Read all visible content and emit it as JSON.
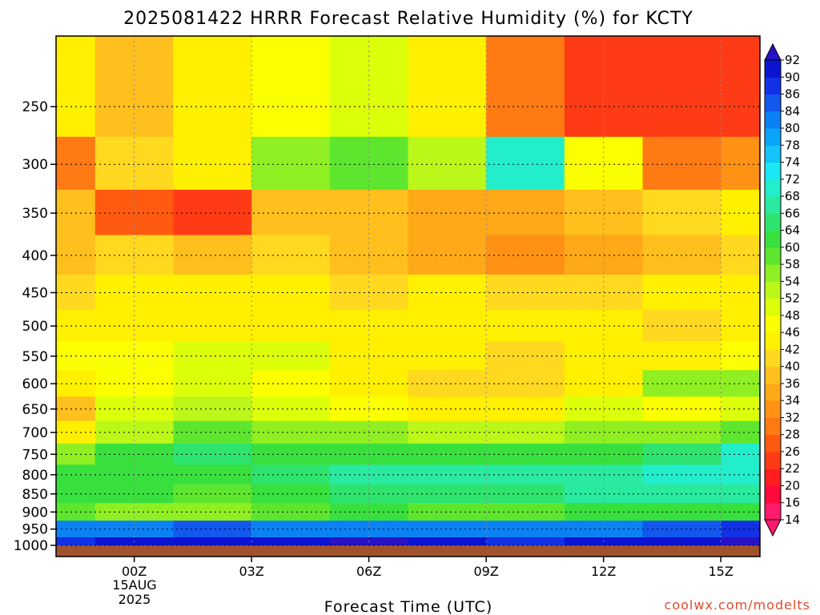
{
  "chart_data": {
    "type": "heatmap",
    "title": "2025081422 HRRR Forecast Relative Humidity (%) for KCTY",
    "xlabel": "Forecast Time (UTC)",
    "ylabel": "",
    "credit": "coolwx.com/modelts",
    "x_date_label": [
      "15AUG",
      "2025"
    ],
    "x_ticks": [
      {
        "label": "00Z",
        "hour": 0
      },
      {
        "label": "03Z",
        "hour": 3
      },
      {
        "label": "06Z",
        "hour": 6
      },
      {
        "label": "09Z",
        "hour": 9
      },
      {
        "label": "12Z",
        "hour": 12
      },
      {
        "label": "15Z",
        "hour": 15
      }
    ],
    "x_range_hours": [
      -2,
      16
    ],
    "y_scale": "log",
    "y_range_hPa": [
      1000,
      200
    ],
    "y_ticks": [
      250,
      300,
      350,
      400,
      450,
      500,
      550,
      600,
      650,
      700,
      750,
      800,
      850,
      900,
      950,
      1000
    ],
    "grid": true,
    "colorbar": {
      "levels": [
        14,
        16,
        20,
        22,
        26,
        28,
        32,
        34,
        36,
        40,
        42,
        46,
        48,
        52,
        54,
        58,
        60,
        64,
        66,
        68,
        72,
        74,
        78,
        80,
        84,
        86,
        90,
        92
      ],
      "colors": [
        "#ff1a6e",
        "#ff0a3c",
        "#ff1e1e",
        "#ff3b16",
        "#ff5a10",
        "#ff7a12",
        "#ff9214",
        "#ffa818",
        "#ffbf1c",
        "#ffd820",
        "#fff000",
        "#fbff00",
        "#dcff0a",
        "#bcf71a",
        "#8fef22",
        "#5ee62e",
        "#38e03e",
        "#2fe46e",
        "#29ea9f",
        "#22eecc",
        "#1ae8f4",
        "#12c4f8",
        "#0aa4f8",
        "#0a82f4",
        "#1258ee",
        "#1232e6",
        "#0c14d2",
        "#2812c4"
      ],
      "extend": "both"
    },
    "series": [
      {
        "name": "",
        "hour": -2,
        "rh": [
          42,
          30,
          36,
          38,
          40,
          44,
          46,
          42,
          36,
          42,
          56,
          60,
          62,
          58,
          80,
          88
        ]
      },
      {
        "name": "",
        "hour": 0,
        "rh": [
          38,
          40,
          26,
          40,
          42,
          42,
          46,
          46,
          50,
          52,
          60,
          62,
          60,
          56,
          82,
          90
        ]
      },
      {
        "name": "",
        "hour": 2,
        "rh": [
          42,
          42,
          22,
          36,
          42,
          42,
          48,
          50,
          52,
          58,
          64,
          60,
          58,
          56,
          84,
          90
        ]
      },
      {
        "name": "",
        "hour": 4,
        "rh": [
          46,
          56,
          38,
          40,
          42,
          44,
          48,
          46,
          48,
          56,
          62,
          64,
          62,
          58,
          82,
          90
        ]
      },
      {
        "name": "",
        "hour": 6,
        "rh": [
          48,
          58,
          36,
          36,
          40,
          42,
          44,
          44,
          46,
          54,
          62,
          66,
          64,
          60,
          82,
          92
        ]
      },
      {
        "name": "",
        "hour": 8,
        "rh": [
          42,
          52,
          34,
          34,
          42,
          44,
          42,
          40,
          44,
          52,
          60,
          66,
          64,
          58,
          80,
          90
        ]
      },
      {
        "name": "",
        "hour": 10,
        "rh": [
          30,
          70,
          34,
          32,
          40,
          42,
          40,
          40,
          44,
          52,
          62,
          66,
          64,
          58,
          80,
          88
        ]
      },
      {
        "name": "",
        "hour": 12,
        "rh": [
          24,
          46,
          36,
          34,
          40,
          42,
          42,
          44,
          48,
          54,
          62,
          66,
          66,
          60,
          82,
          90
        ]
      },
      {
        "name": "",
        "hour": 14,
        "rh": [
          22,
          30,
          40,
          38,
          42,
          40,
          44,
          54,
          46,
          54,
          64,
          68,
          66,
          60,
          84,
          90
        ]
      },
      {
        "name": "",
        "hour": 16,
        "rh": [
          24,
          32,
          42,
          40,
          42,
          42,
          46,
          56,
          50,
          58,
          68,
          70,
          66,
          62,
          86,
          92
        ]
      }
    ]
  }
}
